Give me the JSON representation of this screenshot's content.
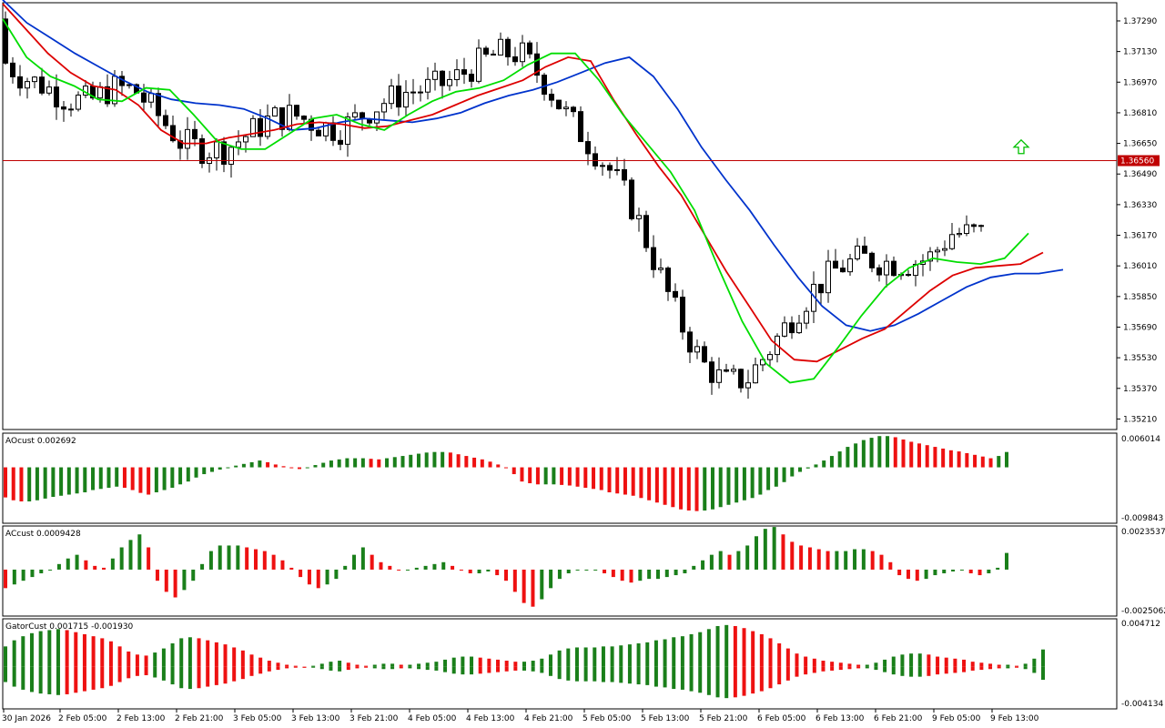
{
  "chart_data": {
    "type": "candlestick",
    "main": {
      "price_ticks": [
        "1.37290",
        "1.37130",
        "1.36970",
        "1.36810",
        "1.36650",
        "1.36490",
        "1.36330",
        "1.36170",
        "1.36010",
        "1.35850",
        "1.35690",
        "1.35530",
        "1.35370",
        "1.35210"
      ],
      "price_tick_values": [
        1.3729,
        1.3713,
        1.3697,
        1.3681,
        1.3665,
        1.3649,
        1.3633,
        1.3617,
        1.3601,
        1.3585,
        1.3569,
        1.3553,
        1.3537,
        1.3521
      ],
      "ylim": [
        1.35155,
        1.37385
      ],
      "current_price": "1.36560",
      "current_price_value": 1.3656,
      "up_arrow_color": "#00c000",
      "up_color": "#ffffff",
      "down_color": "#000000",
      "alligator": [
        {
          "color": "#0033cc",
          "values": [
            1.374,
            1.3728,
            1.372,
            1.3712,
            1.3705,
            1.3698,
            1.3692,
            1.3688,
            1.3686,
            1.3685,
            1.3683,
            1.3678,
            1.3672,
            1.3673,
            1.3676,
            1.3678,
            1.3677,
            1.3676,
            1.3678,
            1.3681,
            1.3686,
            1.369,
            1.3693,
            1.3697,
            1.3702,
            1.3707,
            1.371,
            1.37,
            1.3683,
            1.3663,
            1.3646,
            1.363,
            1.3612,
            1.3595,
            1.358,
            1.357,
            1.3567,
            1.357,
            1.3576,
            1.3583,
            1.359,
            1.3595,
            1.3597,
            1.3597,
            1.3599
          ]
        },
        {
          "color": "#dd0000",
          "values": [
            1.3738,
            1.3725,
            1.3712,
            1.3702,
            1.3695,
            1.3693,
            1.3685,
            1.3672,
            1.3665,
            1.3665,
            1.3668,
            1.367,
            1.3672,
            1.3675,
            1.3676,
            1.3675,
            1.3673,
            1.3674,
            1.3677,
            1.368,
            1.3685,
            1.369,
            1.3694,
            1.3698,
            1.3705,
            1.371,
            1.3708,
            1.3688,
            1.367,
            1.3653,
            1.3638,
            1.3618,
            1.3598,
            1.358,
            1.3562,
            1.3552,
            1.3551,
            1.3557,
            1.3563,
            1.3568,
            1.3578,
            1.3588,
            1.3596,
            1.36,
            1.3601,
            1.3602,
            1.3608
          ]
        },
        {
          "color": "#00dd00",
          "values": [
            1.373,
            1.371,
            1.37,
            1.3695,
            1.3688,
            1.3687,
            1.3694,
            1.3693,
            1.368,
            1.3666,
            1.3662,
            1.3662,
            1.367,
            1.3678,
            1.368,
            1.3675,
            1.3672,
            1.368,
            1.3687,
            1.3692,
            1.3694,
            1.3698,
            1.3706,
            1.3712,
            1.3712,
            1.3698,
            1.368,
            1.3665,
            1.365,
            1.363,
            1.36,
            1.3572,
            1.355,
            1.354,
            1.3542,
            1.3558,
            1.3575,
            1.359,
            1.36,
            1.3605,
            1.3603,
            1.3602,
            1.3605,
            1.3618
          ]
        }
      ]
    },
    "x_ticks": [
      "30 Jan 2026",
      "2 Feb 05:00",
      "2 Feb 13:00",
      "2 Feb 21:00",
      "3 Feb 05:00",
      "3 Feb 13:00",
      "3 Feb 21:00",
      "4 Feb 05:00",
      "4 Feb 13:00",
      "4 Feb 21:00",
      "5 Feb 05:00",
      "5 Feb 13:00",
      "5 Feb 21:00",
      "6 Feb 05:00",
      "6 Feb 13:00",
      "6 Feb 21:00",
      "9 Feb 05:00",
      "9 Feb 13:00"
    ],
    "ao": {
      "label": "AOcust 0.002692",
      "max_label": "0.006014",
      "min_label": "-0.009843",
      "ylim": [
        -0.009843,
        0.006014
      ],
      "up_color": "#1a7f1a",
      "down_color": "#ee1111",
      "values": [
        -0.0053,
        -0.0058,
        -0.006,
        -0.006,
        -0.0058,
        -0.0055,
        -0.0052,
        -0.005,
        -0.0048,
        -0.0046,
        -0.0044,
        -0.004,
        -0.0038,
        -0.0036,
        -0.0034,
        -0.0036,
        -0.004,
        -0.0045,
        -0.0048,
        -0.0044,
        -0.004,
        -0.0036,
        -0.003,
        -0.0025,
        -0.0018,
        -0.0012,
        -0.0008,
        -0.0004,
        0.0,
        0.0003,
        0.0006,
        0.0009,
        0.0012,
        0.0009,
        0.0005,
        0.0002,
        -0.0001,
        -0.0003,
        0.0,
        0.0004,
        0.0008,
        0.0012,
        0.0014,
        0.0016,
        0.0016,
        0.0016,
        0.0015,
        0.0014,
        0.0016,
        0.0018,
        0.002,
        0.0022,
        0.0024,
        0.0026,
        0.0027,
        0.0027,
        0.0026,
        0.0023,
        0.002,
        0.0017,
        0.0014,
        0.001,
        0.0005,
        0.0,
        -0.0012,
        -0.0025,
        -0.0028,
        -0.003,
        -0.003,
        -0.003,
        -0.0031,
        -0.0032,
        -0.0034,
        -0.0036,
        -0.0038,
        -0.004,
        -0.0044,
        -0.0046,
        -0.0048,
        -0.005,
        -0.0054,
        -0.0058,
        -0.0062,
        -0.0066,
        -0.007,
        -0.0074,
        -0.0076,
        -0.0077,
        -0.0076,
        -0.0074,
        -0.007,
        -0.0066,
        -0.0062,
        -0.0058,
        -0.0054,
        -0.0048,
        -0.004,
        -0.0034,
        -0.0026,
        -0.0016,
        -0.0008,
        -0.0002,
        0.0005,
        0.0012,
        0.002,
        0.0028,
        0.0036,
        0.0042,
        0.0048,
        0.0052,
        0.0055,
        0.0055,
        0.0053,
        0.0049,
        0.0045,
        0.0042,
        0.0039,
        0.0036,
        0.0033,
        0.003,
        0.0028,
        0.0025,
        0.0022,
        0.0019,
        0.0016,
        0.002,
        0.0027
      ]
    },
    "ac": {
      "label": "ACcust 0.0009428",
      "max_label": "0.0023537",
      "min_label": "-0.0025062",
      "ylim": [
        -0.0025062,
        0.0023537
      ],
      "up_color": "#1a7f1a",
      "down_color": "#ee1111",
      "values": [
        -0.001,
        -0.0008,
        -0.0006,
        -0.0004,
        -0.0002,
        0.0,
        0.0003,
        0.0006,
        0.0008,
        0.0005,
        0.0002,
        0.0001,
        0.0006,
        0.0012,
        0.0016,
        0.0019,
        0.0012,
        -0.0006,
        -0.0012,
        -0.0015,
        -0.0011,
        -0.0006,
        0.0003,
        0.001,
        0.0013,
        0.0013,
        0.0013,
        0.0012,
        0.0011,
        0.001,
        0.0008,
        0.0005,
        0.0001,
        -0.0004,
        -0.0008,
        -0.001,
        -0.0008,
        -0.0005,
        0.0002,
        0.0008,
        0.0012,
        0.0008,
        0.0004,
        0.0002,
        0.0,
        0.0,
        0.0001,
        0.0002,
        0.0003,
        0.0004,
        0.0002,
        0.0,
        -0.0002,
        -0.0002,
        -0.0001,
        -0.0003,
        -0.0006,
        -0.0012,
        -0.0018,
        -0.002,
        -0.0016,
        -0.001,
        -0.0005,
        -0.0002,
        0.0,
        0.0,
        0.0,
        -0.0002,
        -0.0004,
        -0.0006,
        -0.0007,
        -0.0006,
        -0.0005,
        -0.0005,
        -0.0004,
        -0.0003,
        -0.0002,
        0.0002,
        0.0005,
        0.0008,
        0.001,
        0.0008,
        0.001,
        0.0013,
        0.0018,
        0.0022,
        0.0023,
        0.0019,
        0.0015,
        0.0013,
        0.0012,
        0.0011,
        0.001,
        0.001,
        0.001,
        0.0011,
        0.0011,
        0.001,
        0.0008,
        0.0004,
        -0.0003,
        -0.0005,
        -0.0006,
        -0.0005,
        -0.0003,
        -0.0002,
        -0.0001,
        0.0,
        -0.0002,
        -0.0003,
        -0.0002,
        0.0001,
        0.0009
      ]
    },
    "gator": {
      "label": "GatorCust 0.001715 -0.001930",
      "max_label": "0.004712",
      "min_label": "-0.004134",
      "ylim": [
        -0.004134,
        0.004712
      ],
      "up_color": "#1a7f1a",
      "down_color": "#ee1111",
      "upper": [
        0.002,
        0.0026,
        0.003,
        0.0033,
        0.0035,
        0.0036,
        0.0037,
        0.0036,
        0.0034,
        0.0032,
        0.003,
        0.0028,
        0.0025,
        0.002,
        0.0015,
        0.0012,
        0.0011,
        0.0014,
        0.0018,
        0.0023,
        0.0028,
        0.0029,
        0.0028,
        0.0026,
        0.0024,
        0.0022,
        0.0019,
        0.0016,
        0.0012,
        0.0009,
        0.0006,
        0.0004,
        0.0002,
        0.0001,
        0.0,
        0.0001,
        0.0003,
        0.0005,
        0.0006,
        0.0004,
        0.0002,
        0.0001,
        0.0002,
        0.0003,
        0.0003,
        0.0002,
        0.0002,
        0.0003,
        0.0004,
        0.0005,
        0.0007,
        0.0009,
        0.001,
        0.001,
        0.0009,
        0.0008,
        0.0007,
        0.0006,
        0.0005,
        0.0005,
        0.0006,
        0.0008,
        0.0012,
        0.0016,
        0.0018,
        0.0019,
        0.0019,
        0.0019,
        0.002,
        0.002,
        0.0021,
        0.0022,
        0.0023,
        0.0024,
        0.0026,
        0.0027,
        0.0029,
        0.003,
        0.0032,
        0.0034,
        0.0037,
        0.004,
        0.0041,
        0.004,
        0.0038,
        0.0035,
        0.0032,
        0.0028,
        0.0023,
        0.0018,
        0.0013,
        0.001,
        0.0008,
        0.0006,
        0.0005,
        0.0004,
        0.0003,
        0.0002,
        0.0002,
        0.0004,
        0.0007,
        0.001,
        0.0012,
        0.0013,
        0.0013,
        0.0012,
        0.001,
        0.0009,
        0.0008,
        0.0007,
        0.0005,
        0.0004,
        0.0003,
        0.0002,
        0.0002,
        0.0001,
        0.0003,
        0.0008,
        0.0017
      ]
    }
  }
}
